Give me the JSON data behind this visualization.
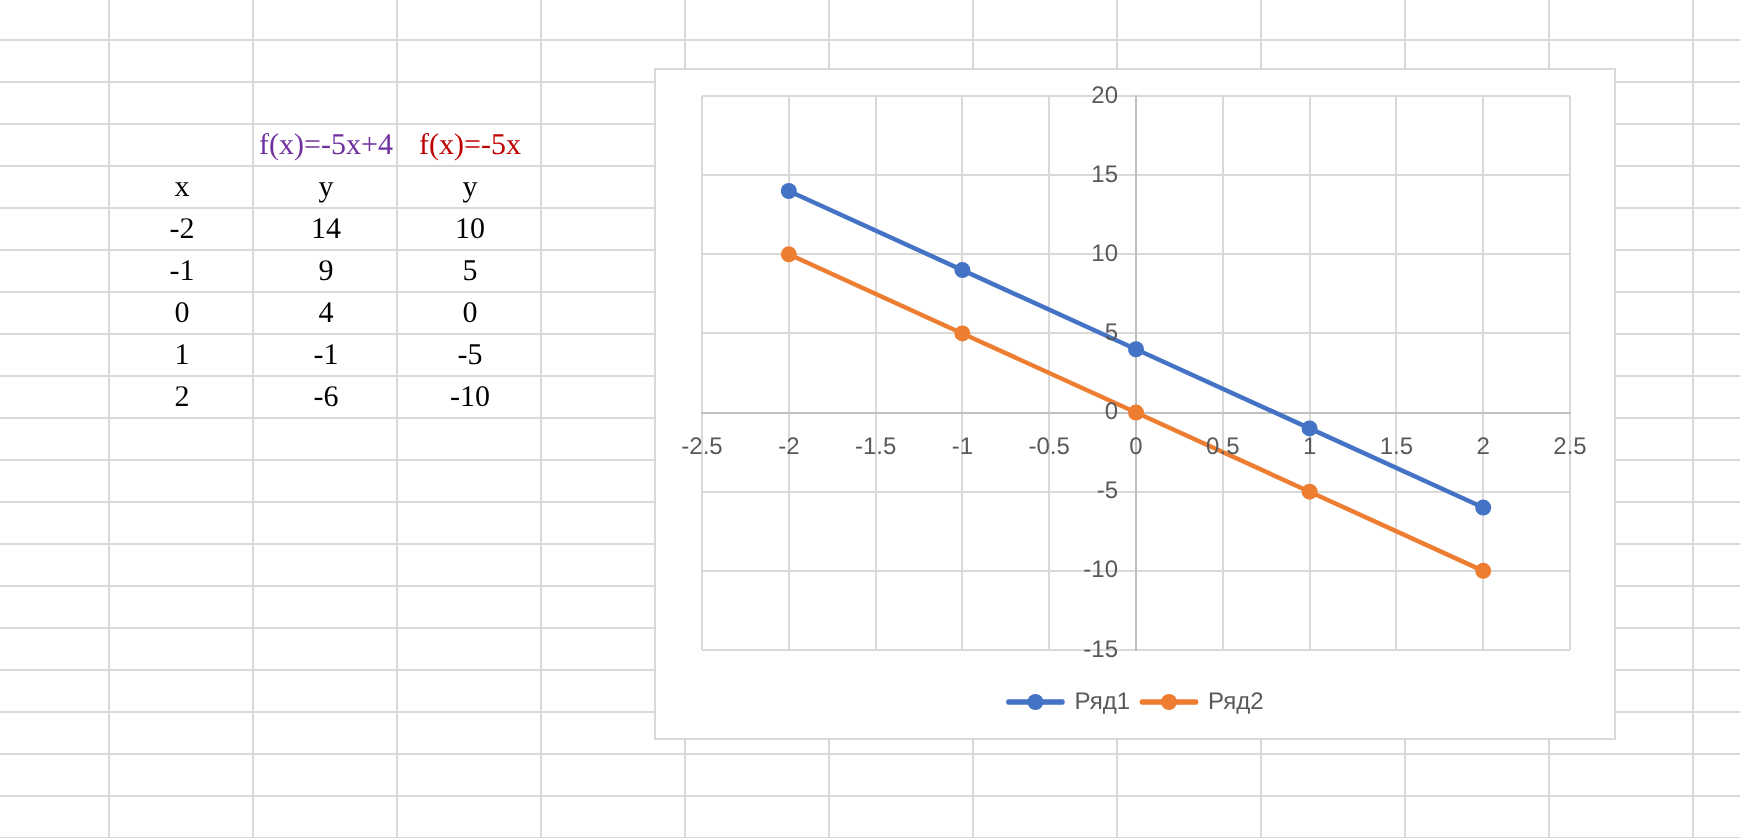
{
  "chart_data": {
    "type": "line",
    "x": [
      -2,
      -1,
      0,
      1,
      2
    ],
    "series": [
      {
        "name": "Ряд1",
        "color": "#4472c4",
        "values": [
          14,
          9,
          4,
          -1,
          -6
        ]
      },
      {
        "name": "Ряд2",
        "color": "#ed7d31",
        "values": [
          10,
          5,
          0,
          -5,
          -10
        ]
      }
    ],
    "xlim": [
      -2.5,
      2.5
    ],
    "xticks": [
      -2.5,
      -2,
      -1.5,
      -1,
      -0.5,
      0,
      0.5,
      1,
      1.5,
      2,
      2.5
    ],
    "ylim": [
      -15,
      20
    ],
    "yticks": [
      -15,
      -10,
      -5,
      0,
      5,
      10,
      15,
      20
    ],
    "grid": true,
    "legend": "bottom",
    "marker": "circle",
    "line_style": "solid",
    "annotations": [
      "f(x)=-5x+4",
      "f(x)=-5x",
      "x",
      "y",
      "y",
      "-2",
      "14",
      "10",
      "-1",
      "9",
      "5",
      "0",
      "4",
      "0",
      "1",
      "-1",
      "-5",
      "2",
      "-6",
      "-10"
    ]
  }
}
